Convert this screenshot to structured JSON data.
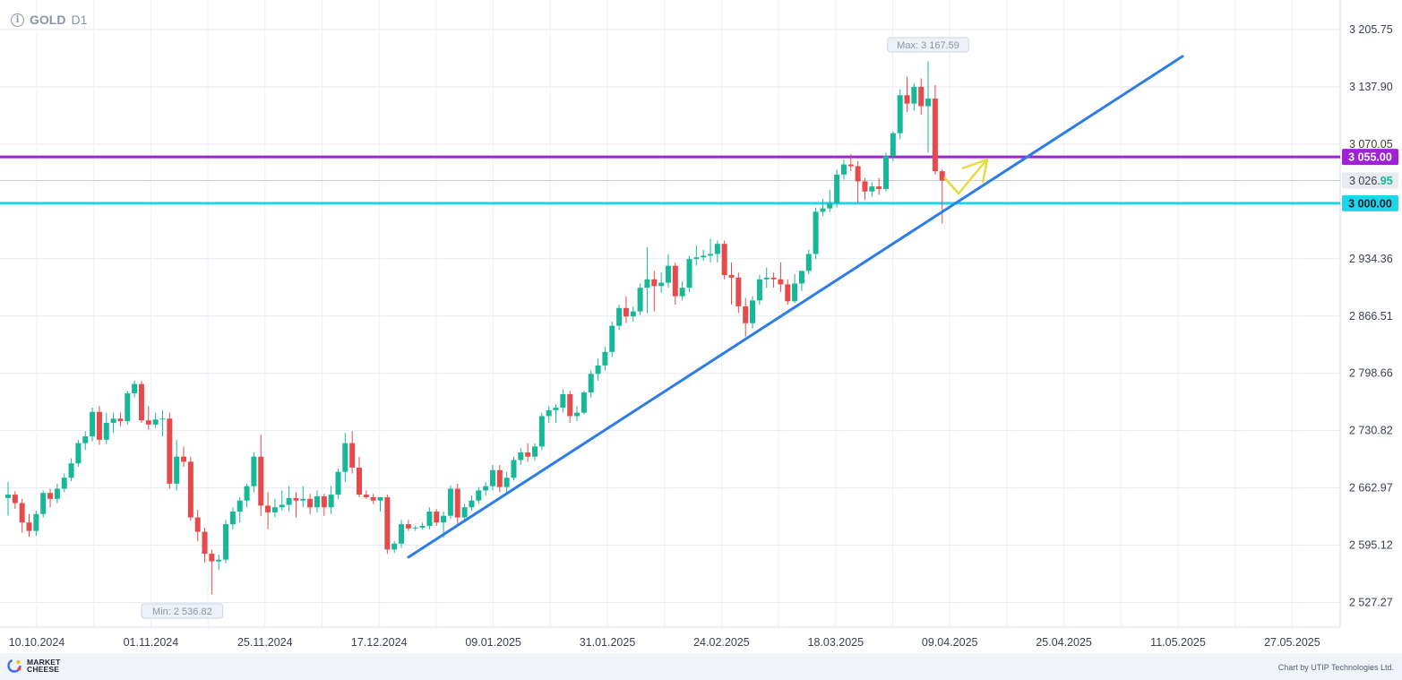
{
  "header": {
    "symbol": "GOLD",
    "timeframe": "D1"
  },
  "footer": {
    "logo_line1": "MARKET",
    "logo_line2": "CHEESE",
    "credit": "Chart by UTIP Technologies Ltd."
  },
  "chart_data": {
    "type": "candlestick",
    "y_ticks": [
      {
        "value": 2527.27,
        "label": "2 527.27"
      },
      {
        "value": 2595.12,
        "label": "2 595.12"
      },
      {
        "value": 2662.97,
        "label": "2 662.97"
      },
      {
        "value": 2730.82,
        "label": "2 730.82"
      },
      {
        "value": 2798.66,
        "label": "2 798.66"
      },
      {
        "value": 2866.51,
        "label": "2 866.51"
      },
      {
        "value": 2934.36,
        "label": "2 934.36"
      },
      {
        "value": 3070.05,
        "label": "3 070.05"
      },
      {
        "value": 3137.9,
        "label": "3 137.90"
      },
      {
        "value": 3205.75,
        "label": "3 205.75"
      }
    ],
    "x_ticks": [
      "10.10.2024",
      "01.11.2024",
      "25.11.2024",
      "17.12.2024",
      "09.01.2025",
      "31.01.2025",
      "24.02.2025",
      "18.03.2025",
      "09.04.2025",
      "25.04.2025",
      "11.05.2025",
      "27.05.2025"
    ],
    "levels": [
      {
        "price": 3055.0,
        "label": "3 055.00",
        "color": "#a020d8"
      },
      {
        "price": 3000.0,
        "label": "3 000.00",
        "color": "#20d5ea"
      }
    ],
    "current_price": {
      "price": 3026.95,
      "label_main": "3 026.",
      "label_tail": "95"
    },
    "max_label": "Max: 3 167.59",
    "min_label": "Min: 2 536.82",
    "trendline": {
      "start_price": 2581,
      "end_price": 3174
    },
    "colors": {
      "up": "#17b897",
      "down": "#e64a4a",
      "trend": "#2b7de9",
      "arrow": "#e6db3c"
    },
    "candles": [
      {
        "o": 2651,
        "h": 2670,
        "l": 2630,
        "c": 2655
      },
      {
        "o": 2655,
        "h": 2659,
        "l": 2638,
        "c": 2645
      },
      {
        "o": 2645,
        "h": 2650,
        "l": 2610,
        "c": 2622
      },
      {
        "o": 2622,
        "h": 2632,
        "l": 2605,
        "c": 2612
      },
      {
        "o": 2612,
        "h": 2636,
        "l": 2606,
        "c": 2632
      },
      {
        "o": 2632,
        "h": 2660,
        "l": 2628,
        "c": 2657
      },
      {
        "o": 2657,
        "h": 2662,
        "l": 2640,
        "c": 2650
      },
      {
        "o": 2650,
        "h": 2668,
        "l": 2645,
        "c": 2662
      },
      {
        "o": 2662,
        "h": 2680,
        "l": 2658,
        "c": 2675
      },
      {
        "o": 2675,
        "h": 2698,
        "l": 2671,
        "c": 2692
      },
      {
        "o": 2692,
        "h": 2720,
        "l": 2688,
        "c": 2716
      },
      {
        "o": 2716,
        "h": 2730,
        "l": 2708,
        "c": 2724
      },
      {
        "o": 2724,
        "h": 2758,
        "l": 2718,
        "c": 2753
      },
      {
        "o": 2753,
        "h": 2760,
        "l": 2714,
        "c": 2720
      },
      {
        "o": 2720,
        "h": 2752,
        "l": 2715,
        "c": 2740
      },
      {
        "o": 2740,
        "h": 2752,
        "l": 2728,
        "c": 2745
      },
      {
        "o": 2745,
        "h": 2752,
        "l": 2736,
        "c": 2742
      },
      {
        "o": 2742,
        "h": 2778,
        "l": 2738,
        "c": 2775
      },
      {
        "o": 2775,
        "h": 2790,
        "l": 2770,
        "c": 2786
      },
      {
        "o": 2786,
        "h": 2790,
        "l": 2740,
        "c": 2743
      },
      {
        "o": 2743,
        "h": 2760,
        "l": 2732,
        "c": 2738
      },
      {
        "o": 2738,
        "h": 2752,
        "l": 2734,
        "c": 2744
      },
      {
        "o": 2744,
        "h": 2755,
        "l": 2724,
        "c": 2745
      },
      {
        "o": 2745,
        "h": 2752,
        "l": 2662,
        "c": 2668
      },
      {
        "o": 2668,
        "h": 2720,
        "l": 2660,
        "c": 2700
      },
      {
        "o": 2700,
        "h": 2712,
        "l": 2688,
        "c": 2694
      },
      {
        "o": 2694,
        "h": 2700,
        "l": 2624,
        "c": 2628
      },
      {
        "o": 2628,
        "h": 2637,
        "l": 2600,
        "c": 2611
      },
      {
        "o": 2611,
        "h": 2616,
        "l": 2575,
        "c": 2585
      },
      {
        "o": 2585,
        "h": 2590,
        "l": 2537,
        "c": 2576
      },
      {
        "o": 2576,
        "h": 2584,
        "l": 2566,
        "c": 2578
      },
      {
        "o": 2578,
        "h": 2625,
        "l": 2574,
        "c": 2620
      },
      {
        "o": 2620,
        "h": 2640,
        "l": 2614,
        "c": 2635
      },
      {
        "o": 2635,
        "h": 2652,
        "l": 2622,
        "c": 2648
      },
      {
        "o": 2648,
        "h": 2668,
        "l": 2640,
        "c": 2665
      },
      {
        "o": 2665,
        "h": 2705,
        "l": 2658,
        "c": 2700
      },
      {
        "o": 2700,
        "h": 2726,
        "l": 2630,
        "c": 2642
      },
      {
        "o": 2642,
        "h": 2658,
        "l": 2614,
        "c": 2634
      },
      {
        "o": 2634,
        "h": 2650,
        "l": 2628,
        "c": 2640
      },
      {
        "o": 2640,
        "h": 2660,
        "l": 2636,
        "c": 2643
      },
      {
        "o": 2643,
        "h": 2665,
        "l": 2635,
        "c": 2651
      },
      {
        "o": 2651,
        "h": 2658,
        "l": 2628,
        "c": 2648
      },
      {
        "o": 2648,
        "h": 2665,
        "l": 2640,
        "c": 2650
      },
      {
        "o": 2650,
        "h": 2656,
        "l": 2632,
        "c": 2640
      },
      {
        "o": 2640,
        "h": 2660,
        "l": 2634,
        "c": 2653
      },
      {
        "o": 2653,
        "h": 2656,
        "l": 2630,
        "c": 2640
      },
      {
        "o": 2640,
        "h": 2665,
        "l": 2632,
        "c": 2655
      },
      {
        "o": 2655,
        "h": 2686,
        "l": 2650,
        "c": 2682
      },
      {
        "o": 2682,
        "h": 2728,
        "l": 2670,
        "c": 2716
      },
      {
        "o": 2716,
        "h": 2730,
        "l": 2680,
        "c": 2687
      },
      {
        "o": 2687,
        "h": 2700,
        "l": 2652,
        "c": 2655
      },
      {
        "o": 2655,
        "h": 2660,
        "l": 2650,
        "c": 2652
      },
      {
        "o": 2652,
        "h": 2656,
        "l": 2644,
        "c": 2648
      },
      {
        "o": 2648,
        "h": 2652,
        "l": 2635,
        "c": 2652
      },
      {
        "o": 2652,
        "h": 2655,
        "l": 2585,
        "c": 2590
      },
      {
        "o": 2590,
        "h": 2600,
        "l": 2586,
        "c": 2597
      },
      {
        "o": 2597,
        "h": 2625,
        "l": 2592,
        "c": 2620
      },
      {
        "o": 2620,
        "h": 2625,
        "l": 2612,
        "c": 2615
      },
      {
        "o": 2615,
        "h": 2618,
        "l": 2612,
        "c": 2616
      },
      {
        "o": 2616,
        "h": 2622,
        "l": 2614,
        "c": 2618
      },
      {
        "o": 2618,
        "h": 2640,
        "l": 2614,
        "c": 2635
      },
      {
        "o": 2635,
        "h": 2638,
        "l": 2618,
        "c": 2622
      },
      {
        "o": 2622,
        "h": 2635,
        "l": 2604,
        "c": 2630
      },
      {
        "o": 2630,
        "h": 2666,
        "l": 2626,
        "c": 2662
      },
      {
        "o": 2662,
        "h": 2668,
        "l": 2620,
        "c": 2628
      },
      {
        "o": 2628,
        "h": 2644,
        "l": 2624,
        "c": 2640
      },
      {
        "o": 2640,
        "h": 2654,
        "l": 2636,
        "c": 2648
      },
      {
        "o": 2648,
        "h": 2664,
        "l": 2644,
        "c": 2660
      },
      {
        "o": 2660,
        "h": 2670,
        "l": 2654,
        "c": 2665
      },
      {
        "o": 2665,
        "h": 2690,
        "l": 2660,
        "c": 2684
      },
      {
        "o": 2684,
        "h": 2690,
        "l": 2658,
        "c": 2664
      },
      {
        "o": 2664,
        "h": 2682,
        "l": 2655,
        "c": 2675
      },
      {
        "o": 2675,
        "h": 2700,
        "l": 2672,
        "c": 2696
      },
      {
        "o": 2696,
        "h": 2710,
        "l": 2690,
        "c": 2705
      },
      {
        "o": 2705,
        "h": 2716,
        "l": 2694,
        "c": 2700
      },
      {
        "o": 2700,
        "h": 2716,
        "l": 2695,
        "c": 2712
      },
      {
        "o": 2712,
        "h": 2752,
        "l": 2708,
        "c": 2748
      },
      {
        "o": 2748,
        "h": 2760,
        "l": 2740,
        "c": 2755
      },
      {
        "o": 2755,
        "h": 2762,
        "l": 2740,
        "c": 2758
      },
      {
        "o": 2758,
        "h": 2780,
        "l": 2752,
        "c": 2774
      },
      {
        "o": 2774,
        "h": 2778,
        "l": 2740,
        "c": 2748
      },
      {
        "o": 2748,
        "h": 2760,
        "l": 2742,
        "c": 2752
      },
      {
        "o": 2752,
        "h": 2778,
        "l": 2750,
        "c": 2776
      },
      {
        "o": 2776,
        "h": 2802,
        "l": 2770,
        "c": 2798
      },
      {
        "o": 2798,
        "h": 2816,
        "l": 2790,
        "c": 2808
      },
      {
        "o": 2808,
        "h": 2830,
        "l": 2802,
        "c": 2824
      },
      {
        "o": 2824,
        "h": 2860,
        "l": 2818,
        "c": 2855
      },
      {
        "o": 2855,
        "h": 2880,
        "l": 2850,
        "c": 2876
      },
      {
        "o": 2876,
        "h": 2890,
        "l": 2858,
        "c": 2866
      },
      {
        "o": 2866,
        "h": 2878,
        "l": 2860,
        "c": 2872
      },
      {
        "o": 2872,
        "h": 2905,
        "l": 2868,
        "c": 2900
      },
      {
        "o": 2900,
        "h": 2948,
        "l": 2870,
        "c": 2910
      },
      {
        "o": 2910,
        "h": 2920,
        "l": 2872,
        "c": 2902
      },
      {
        "o": 2902,
        "h": 2918,
        "l": 2894,
        "c": 2906
      },
      {
        "o": 2906,
        "h": 2940,
        "l": 2900,
        "c": 2926
      },
      {
        "o": 2926,
        "h": 2930,
        "l": 2880,
        "c": 2890
      },
      {
        "o": 2890,
        "h": 2908,
        "l": 2885,
        "c": 2900
      },
      {
        "o": 2900,
        "h": 2938,
        "l": 2895,
        "c": 2934
      },
      {
        "o": 2934,
        "h": 2950,
        "l": 2926,
        "c": 2936
      },
      {
        "o": 2936,
        "h": 2945,
        "l": 2932,
        "c": 2938
      },
      {
        "o": 2938,
        "h": 2958,
        "l": 2930,
        "c": 2940
      },
      {
        "o": 2940,
        "h": 2956,
        "l": 2930,
        "c": 2952
      },
      {
        "o": 2952,
        "h": 2956,
        "l": 2910,
        "c": 2915
      },
      {
        "o": 2915,
        "h": 2930,
        "l": 2880,
        "c": 2912
      },
      {
        "o": 2912,
        "h": 2918,
        "l": 2870,
        "c": 2878
      },
      {
        "o": 2878,
        "h": 2888,
        "l": 2842,
        "c": 2858
      },
      {
        "o": 2858,
        "h": 2890,
        "l": 2852,
        "c": 2885
      },
      {
        "o": 2885,
        "h": 2915,
        "l": 2880,
        "c": 2910
      },
      {
        "o": 2910,
        "h": 2924,
        "l": 2900,
        "c": 2912
      },
      {
        "o": 2912,
        "h": 2918,
        "l": 2900,
        "c": 2910
      },
      {
        "o": 2910,
        "h": 2930,
        "l": 2895,
        "c": 2904
      },
      {
        "o": 2904,
        "h": 2910,
        "l": 2880,
        "c": 2884
      },
      {
        "o": 2884,
        "h": 2916,
        "l": 2882,
        "c": 2905
      },
      {
        "o": 2905,
        "h": 2920,
        "l": 2896,
        "c": 2920
      },
      {
        "o": 2920,
        "h": 2945,
        "l": 2916,
        "c": 2940
      },
      {
        "o": 2940,
        "h": 2995,
        "l": 2934,
        "c": 2990
      },
      {
        "o": 2990,
        "h": 3005,
        "l": 2985,
        "c": 2994
      },
      {
        "o": 2994,
        "h": 3016,
        "l": 2990,
        "c": 3000
      },
      {
        "o": 3000,
        "h": 3040,
        "l": 2995,
        "c": 3034
      },
      {
        "o": 3034,
        "h": 3052,
        "l": 3028,
        "c": 3046
      },
      {
        "o": 3046,
        "h": 3058,
        "l": 3038,
        "c": 3044
      },
      {
        "o": 3044,
        "h": 3050,
        "l": 3000,
        "c": 3026
      },
      {
        "o": 3026,
        "h": 3030,
        "l": 3004,
        "c": 3014
      },
      {
        "o": 3014,
        "h": 3025,
        "l": 3008,
        "c": 3020
      },
      {
        "o": 3020,
        "h": 3030,
        "l": 3010,
        "c": 3017
      },
      {
        "o": 3017,
        "h": 3060,
        "l": 3014,
        "c": 3056
      },
      {
        "o": 3056,
        "h": 3085,
        "l": 3050,
        "c": 3083
      },
      {
        "o": 3083,
        "h": 3135,
        "l": 3076,
        "c": 3128
      },
      {
        "o": 3128,
        "h": 3150,
        "l": 3108,
        "c": 3118
      },
      {
        "o": 3118,
        "h": 3142,
        "l": 3110,
        "c": 3138
      },
      {
        "o": 3138,
        "h": 3148,
        "l": 3105,
        "c": 3115
      },
      {
        "o": 3115,
        "h": 3168,
        "l": 3060,
        "c": 3124
      },
      {
        "o": 3124,
        "h": 3140,
        "l": 3034,
        "c": 3038
      },
      {
        "o": 3038,
        "h": 3040,
        "l": 2976,
        "c": 3027
      }
    ]
  }
}
